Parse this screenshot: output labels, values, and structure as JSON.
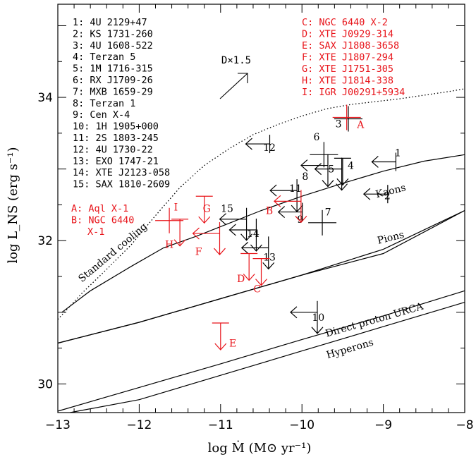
{
  "chart_data": {
    "type": "scatter",
    "xlabel": "log Ṁ (M⊙ yr⁻¹)",
    "ylabel": "log L_NS (erg s⁻¹)",
    "xlim": [
      -13,
      -8
    ],
    "ylim": [
      29.6,
      35.3
    ],
    "xticks": [
      -13,
      -12,
      -11,
      -10,
      -9,
      -8
    ],
    "yticks": [
      30,
      32,
      34
    ],
    "annotation": "D×1.5",
    "colors": {
      "black_sources": "#000000",
      "red_sources": "#e8141a"
    },
    "legend_black": [
      "1: 4U 2129+47",
      "2: KS 1731-260",
      "3: 4U 1608-522",
      "4: Terzan 5",
      "5: 1M 1716-315",
      "6: RX J1709-26",
      "7: MXB 1659-29",
      "8: Terzan 1",
      "9: Cen X-4",
      "10: 1H 1905+000",
      "11: 2S 1803-245",
      "12: 4U 1730-22",
      "13: EXO 1747-21",
      "14: XTE J2123-058",
      "15: SAX 1810-2609"
    ],
    "legend_red_left": [
      "A: Aql X-1",
      "B: NGC 6440",
      "X-1"
    ],
    "legend_red_right": [
      "C: NGC 6440 X-2",
      "D: XTE J0929-314",
      "E: SAX J1808-3658",
      "F: XTE J1807-294",
      "G:  XTE J1751-305",
      "H: XTE J1814-338",
      "I: IGR J00291+5934"
    ],
    "curves": [
      {
        "name": "Standard cooling",
        "style": "solid",
        "x": [
          -12.95,
          -12.6,
          -12.1,
          -11.7,
          -11.3,
          -10.9,
          -10.5,
          -10,
          -9.5,
          -9,
          -8.5,
          -8
        ],
        "y": [
          31.0,
          31.3,
          31.64,
          31.9,
          32.06,
          32.24,
          32.42,
          32.62,
          32.8,
          32.97,
          33.11,
          33.2
        ]
      },
      {
        "name": "Standard cooling",
        "style": "dotted",
        "x": [
          -13,
          -12.7,
          -12.4,
          -12.1,
          -11.8,
          -11.5,
          -11.2,
          -10.9,
          -10.6,
          -10.3,
          -10,
          -9.7,
          -9.4,
          -9.1,
          -8.8,
          -8.5,
          -8.2,
          -8
        ],
        "y": [
          30.9,
          31.27,
          31.6,
          31.94,
          32.35,
          32.74,
          33.05,
          33.28,
          33.48,
          33.62,
          33.74,
          33.84,
          33.9,
          33.94,
          33.98,
          34.03,
          34.08,
          34.12
        ]
      },
      {
        "name": "Kaons",
        "style": "solid",
        "x": [
          -13,
          -12,
          -11,
          -10,
          -9,
          -8
        ],
        "y": [
          30.57,
          30.86,
          31.19,
          31.52,
          31.82,
          32.42
        ]
      },
      {
        "name": "Pions",
        "style": "solid",
        "x": [
          -13,
          -12,
          -11,
          -10,
          -9,
          -8
        ],
        "y": [
          30.57,
          30.86,
          31.19,
          31.52,
          31.88,
          32.42
        ]
      },
      {
        "name": "Direct proton URCA",
        "style": "solid",
        "x": [
          -13,
          -12,
          -11,
          -10,
          -9,
          -8
        ],
        "y": [
          29.62,
          29.95,
          30.28,
          30.62,
          30.95,
          31.3
        ]
      },
      {
        "name": "Hyperons",
        "style": "solid",
        "x": [
          -12.85,
          -12,
          -11,
          -10,
          -9,
          -8
        ],
        "y": [
          29.6,
          29.78,
          30.12,
          30.46,
          30.8,
          31.14
        ]
      }
    ],
    "curve_labels": [
      {
        "text": "Standard cooling",
        "x": -12.3,
        "y": 31.8,
        "angle": -40
      },
      {
        "text": "Kaons",
        "x": -8.9,
        "y": 32.65,
        "angle": -14
      },
      {
        "text": "Pions",
        "x": -8.9,
        "y": 32.0,
        "angle": -14
      },
      {
        "text": "Direct proton URCA",
        "x": -9.1,
        "y": 30.85,
        "angle": -16
      },
      {
        "text": "Hyperons",
        "x": -9.4,
        "y": 30.45,
        "angle": -16
      }
    ],
    "sources": [
      {
        "id": "1",
        "color": "black",
        "type": "left-arrow",
        "x": -8.95,
        "y": 33.1,
        "label_x": -8.82,
        "label_y": 33.18
      },
      {
        "id": "2",
        "color": "black",
        "type": "left-arrow",
        "x": -9.05,
        "y": 32.65,
        "label_x": -8.95,
        "label_y": 32.58
      },
      {
        "id": "3",
        "color": "black",
        "type": "cross",
        "x": -9.43,
        "y": 33.7,
        "label_x": -9.55,
        "label_y": 33.58
      },
      {
        "id": "4",
        "color": "black",
        "type": "down-arrow",
        "x": -9.5,
        "y": 33.15,
        "label_x": -9.4,
        "label_y": 33.0
      },
      {
        "id": "5",
        "color": "black",
        "type": "down-left-arrow",
        "x": -9.65,
        "y": 33.0,
        "label_x": -9.64,
        "label_y": 32.95
      },
      {
        "id": "6",
        "color": "black",
        "type": "cross",
        "x": -9.73,
        "y": 33.2,
        "label_x": -9.82,
        "label_y": 33.4
      },
      {
        "id": "7",
        "color": "black",
        "type": "cross",
        "x": -9.75,
        "y": 32.25,
        "label_x": -9.68,
        "label_y": 32.35
      },
      {
        "id": "8",
        "color": "black",
        "type": "down-left-arrow",
        "x": -9.82,
        "y": 33.05,
        "label_x": -9.96,
        "label_y": 32.85
      },
      {
        "id": "9",
        "color": "black",
        "type": "left-arrow",
        "x": -10.1,
        "y": 32.4,
        "label_x": -10.02,
        "label_y": 32.25
      },
      {
        "id": "10",
        "color": "black",
        "type": "down-left-arrow",
        "x": -9.95,
        "y": 31.0,
        "label_x": -9.8,
        "label_y": 30.88
      },
      {
        "id": "11",
        "color": "black",
        "type": "down-left-arrow",
        "x": -10.2,
        "y": 32.7,
        "label_x": -10.08,
        "label_y": 32.68
      },
      {
        "id": "12",
        "color": "black",
        "type": "left-arrow",
        "x": -10.5,
        "y": 33.35,
        "label_x": -10.4,
        "label_y": 33.25
      },
      {
        "id": "13",
        "color": "black",
        "type": "down-left-arrow",
        "x": -10.55,
        "y": 31.9,
        "label_x": -10.4,
        "label_y": 31.72
      },
      {
        "id": "14",
        "color": "black",
        "type": "down-left-arrow",
        "x": -10.7,
        "y": 32.15,
        "label_x": -10.6,
        "label_y": 32.05
      },
      {
        "id": "15",
        "color": "black",
        "type": "down-left-arrow",
        "x": -10.82,
        "y": 32.3,
        "label_x": -10.92,
        "label_y": 32.4
      },
      {
        "id": "A",
        "color": "red",
        "type": "cross",
        "x": -9.45,
        "y": 33.72,
        "label_x": -9.28,
        "label_y": 33.57
      },
      {
        "id": "B",
        "color": "red",
        "type": "down-left-arrow",
        "x": -10.15,
        "y": 32.55,
        "label_x": -10.4,
        "label_y": 32.37
      },
      {
        "id": "C",
        "color": "red",
        "type": "down-arrow",
        "x": -10.5,
        "y": 31.75,
        "label_x": -10.55,
        "label_y": 31.28
      },
      {
        "id": "D",
        "color": "red",
        "type": "down-arrow",
        "x": -10.65,
        "y": 31.82,
        "label_x": -10.75,
        "label_y": 31.42
      },
      {
        "id": "E",
        "color": "red",
        "type": "down-arrow",
        "x": -11.0,
        "y": 30.85,
        "label_x": -10.85,
        "label_y": 30.52
      },
      {
        "id": "F",
        "color": "red",
        "type": "down-left-arrow",
        "x": -11.15,
        "y": 32.1,
        "label_x": -11.27,
        "label_y": 31.8
      },
      {
        "id": "G",
        "color": "red",
        "type": "down-arrow",
        "x": -11.2,
        "y": 32.62,
        "label_x": -11.17,
        "label_y": 32.4
      },
      {
        "id": "H",
        "color": "red",
        "type": "down-arrow",
        "x": -11.5,
        "y": 32.3,
        "label_x": -11.63,
        "label_y": 31.9
      },
      {
        "id": "I",
        "color": "red",
        "type": "cross",
        "x": -11.63,
        "y": 32.28,
        "label_x": -11.55,
        "label_y": 32.42
      }
    ]
  }
}
